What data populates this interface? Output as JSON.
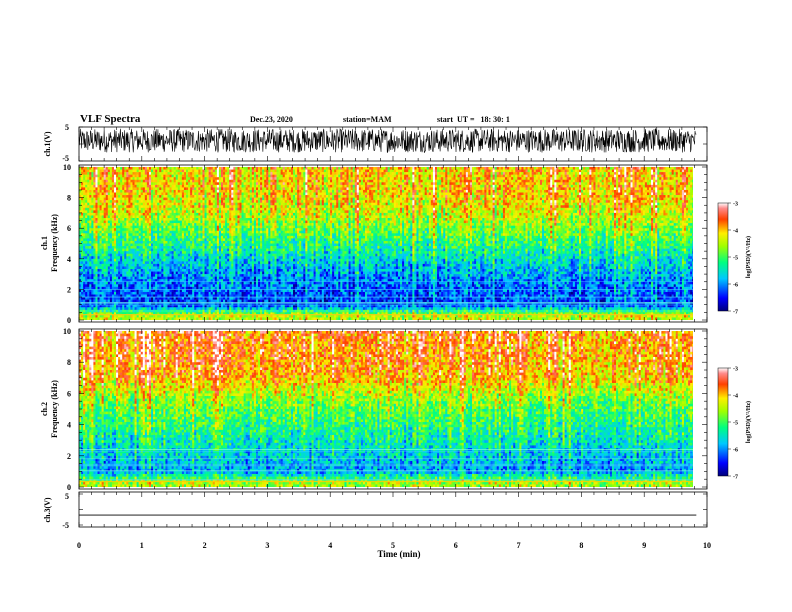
{
  "header": {
    "title": "VLF Spectra",
    "date": "Dec.23, 2020",
    "station": "station=MAM",
    "start_time": "start  UT =   18: 30: 1"
  },
  "chart_data": [
    {
      "type": "line",
      "panel": "ch1-waveform",
      "ylabel": "ch.1(V)",
      "ylim": [
        -5,
        5
      ],
      "yticks": [
        -5,
        5
      ],
      "xlim": [
        0,
        9.83
      ],
      "series": [
        {
          "description_hidden": true,
          "style": "dense noise",
          "amplitude_range": [
            -2.5,
            4.5
          ],
          "color": "#000000"
        }
      ]
    },
    {
      "type": "heatmap",
      "panel": "ch1-spectrogram",
      "ylabel_line1": "ch.1",
      "ylabel_line2": "Frequency (kHz)",
      "ylim": [
        0,
        10
      ],
      "yticks": [
        0,
        2,
        4,
        6,
        8,
        10
      ],
      "xlim": [
        0,
        9.83
      ],
      "colorbar": {
        "label": "log(PSD)(V²/Hz)",
        "ticks": [
          -3,
          -4,
          -5,
          -6,
          -7
        ],
        "range": [
          -7,
          -3
        ]
      },
      "profile_by_frequency_khz": [
        {
          "f": 0.3,
          "logpsd": -4.5
        },
        {
          "f": 1.0,
          "logpsd": -6.4
        },
        {
          "f": 2.5,
          "logpsd": -6.1
        },
        {
          "f": 4.0,
          "logpsd": -5.6
        },
        {
          "f": 5.5,
          "logpsd": -5.0
        },
        {
          "f": 7.0,
          "logpsd": -4.4
        },
        {
          "f": 8.5,
          "logpsd": -4.1
        },
        {
          "f": 10.0,
          "logpsd": -4.1
        }
      ]
    },
    {
      "type": "heatmap",
      "panel": "ch2-spectrogram",
      "ylabel_line1": "ch.2",
      "ylabel_line2": "Frequency (kHz)",
      "ylim": [
        0,
        10
      ],
      "yticks": [
        0,
        2,
        4,
        6,
        8,
        10
      ],
      "xlim": [
        0,
        9.83
      ],
      "colorbar": {
        "label": "log(PSD)(V²/Hz)",
        "ticks": [
          -3,
          -4,
          -5,
          -6,
          -7
        ],
        "range": [
          -7,
          -3
        ]
      },
      "profile_by_frequency_khz": [
        {
          "f": 0.3,
          "logpsd": -4.6
        },
        {
          "f": 1.0,
          "logpsd": -6.0
        },
        {
          "f": 2.5,
          "logpsd": -5.6
        },
        {
          "f": 4.0,
          "logpsd": -5.2
        },
        {
          "f": 5.5,
          "logpsd": -4.8
        },
        {
          "f": 7.0,
          "logpsd": -4.0
        },
        {
          "f": 8.5,
          "logpsd": -3.8
        },
        {
          "f": 10.0,
          "logpsd": -3.8
        }
      ]
    },
    {
      "type": "line",
      "panel": "ch3-waveform",
      "ylabel": "ch.3(V)",
      "ylim": [
        -5,
        5
      ],
      "yticks": [
        -5,
        5
      ],
      "xlim": [
        0,
        9.83
      ],
      "series": [
        {
          "x": [
            0,
            9.83
          ],
          "y": [
            -1.8,
            -1.8
          ],
          "color": "#000000"
        }
      ]
    }
  ],
  "xaxis": {
    "label": "Time (min)",
    "ticks": [
      0,
      1,
      2,
      3,
      4,
      5,
      6,
      7,
      8,
      9,
      10
    ],
    "range": [
      0,
      10
    ]
  }
}
